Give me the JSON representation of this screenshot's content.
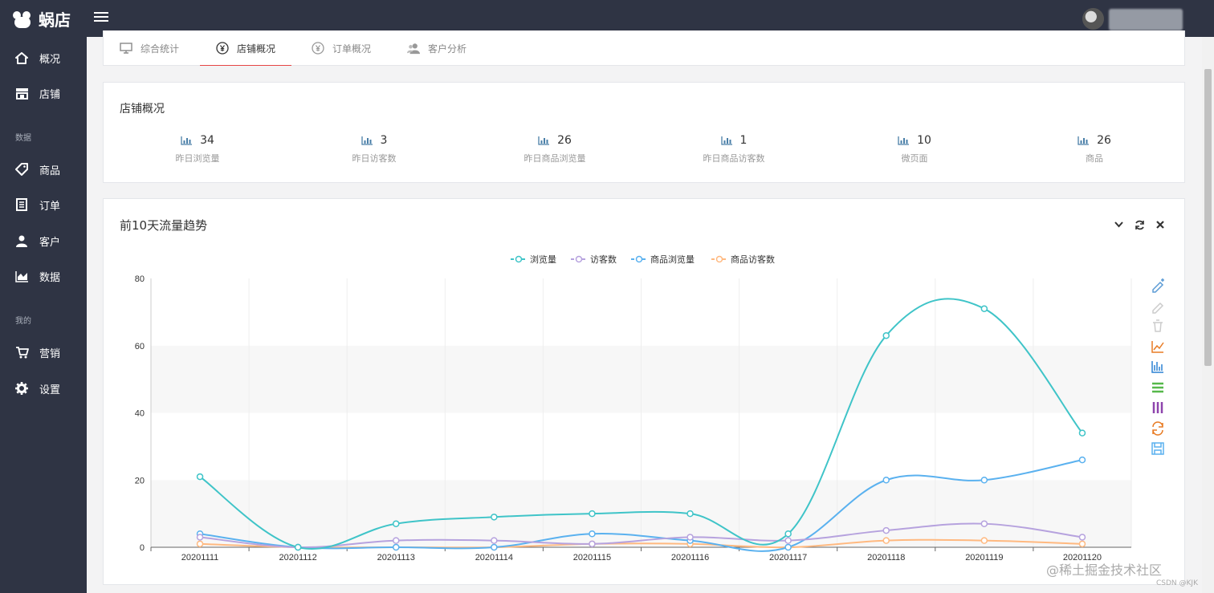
{
  "app": {
    "logo_text": "蜗店"
  },
  "sidebar": {
    "items": [
      {
        "label": "概况",
        "icon": "home-icon"
      },
      {
        "label": "店铺",
        "icon": "store-icon"
      },
      {
        "label": "商品",
        "icon": "tag-icon"
      },
      {
        "label": "订单",
        "icon": "document-icon"
      },
      {
        "label": "客户",
        "icon": "user-icon"
      },
      {
        "label": "数据",
        "icon": "area-chart-icon"
      },
      {
        "label": "营销",
        "icon": "cart-icon"
      },
      {
        "label": "设置",
        "icon": "gear-icon"
      }
    ],
    "sections": [
      "数据",
      "我的"
    ]
  },
  "tabs": [
    {
      "label": "综合统计",
      "icon": "monitor-icon"
    },
    {
      "label": "店铺概况",
      "icon": "yen-circle-icon",
      "active": true
    },
    {
      "label": "订单概况",
      "icon": "yen-circle-icon"
    },
    {
      "label": "客户分析",
      "icon": "users-icon"
    }
  ],
  "overview": {
    "title": "店铺概况",
    "stats": [
      {
        "value": "34",
        "label": "昨日浏览量"
      },
      {
        "value": "3",
        "label": "昨日访客数"
      },
      {
        "value": "26",
        "label": "昨日商品浏览量"
      },
      {
        "value": "1",
        "label": "昨日商品访客数"
      },
      {
        "value": "10",
        "label": "微页面"
      },
      {
        "value": "26",
        "label": "商品"
      }
    ]
  },
  "trend": {
    "title": "前10天流量趋势"
  },
  "chart_data": {
    "type": "line",
    "categories": [
      "20201111",
      "20201112",
      "20201113",
      "20201114",
      "20201115",
      "20201116",
      "20201117",
      "20201118",
      "20201119",
      "20201120"
    ],
    "ylim": [
      0,
      80
    ],
    "yticks": [
      0,
      20,
      40,
      60,
      80
    ],
    "legend_position": "top-center",
    "series": [
      {
        "name": "浏览量",
        "color": "#3fc4c8",
        "values": [
          21,
          0,
          7,
          9,
          10,
          10,
          4,
          63,
          71,
          34
        ]
      },
      {
        "name": "访客数",
        "color": "#b6a2de",
        "values": [
          3,
          0,
          2,
          2,
          1,
          3,
          2,
          5,
          7,
          3
        ]
      },
      {
        "name": "商品浏览量",
        "color": "#5ab1ef",
        "values": [
          4,
          0,
          0,
          0,
          4,
          2,
          0,
          20,
          20,
          26
        ]
      },
      {
        "name": "商品访客数",
        "color": "#ffb980",
        "values": [
          1,
          0,
          0,
          0,
          1,
          1,
          0,
          2,
          2,
          1
        ]
      }
    ],
    "toolbox": [
      "pencil-plus-icon",
      "pencil-icon",
      "trash-icon",
      "line-chart-icon",
      "bar-chart-icon",
      "stack-icon",
      "tiled-icon",
      "restore-icon",
      "save-icon"
    ],
    "toolbox_colors": [
      "#5b9bd5",
      "#cccccc",
      "#cccccc",
      "#e87c25",
      "#2b82d4",
      "#56b84a",
      "#8e44ad",
      "#e87c25",
      "#5ab1ef"
    ]
  },
  "watermark": {
    "text": "@稀土掘金技术社区",
    "sub": "CSDN @KJK"
  }
}
